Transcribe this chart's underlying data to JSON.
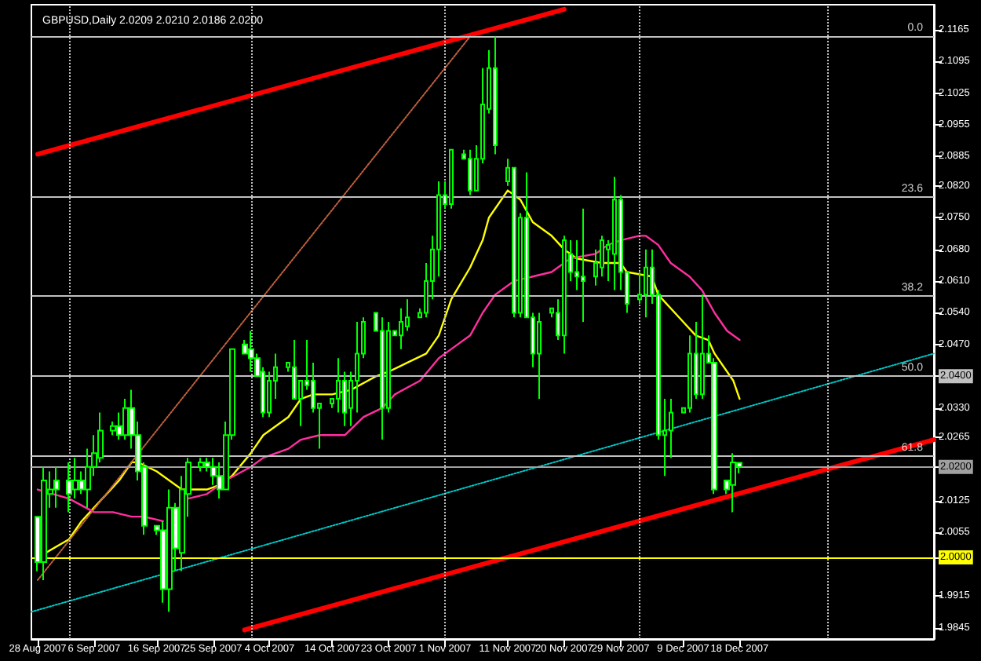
{
  "chart_data": {
    "type": "candlestick",
    "title": "GBPUSD,Daily 2.0209 2.0210 2.0186 2.0200",
    "color": "#00ff00",
    "marker": "none",
    "x": [
      "2007-08-28",
      "2007-08-29",
      "2007-08-30",
      "2007-08-31",
      "2007-09-02",
      "2007-09-03",
      "2007-09-04",
      "2007-09-05",
      "2007-09-06",
      "2007-09-07",
      "2007-09-09",
      "2007-09-10",
      "2007-09-11",
      "2007-09-12",
      "2007-09-13",
      "2007-09-14",
      "2007-09-16",
      "2007-09-17",
      "2007-09-18",
      "2007-09-19",
      "2007-09-20",
      "2007-09-21",
      "2007-09-23",
      "2007-09-24",
      "2007-09-25",
      "2007-09-26",
      "2007-09-27",
      "2007-09-28",
      "2007-09-30",
      "2007-10-01",
      "2007-10-02",
      "2007-10-03",
      "2007-10-04",
      "2007-10-05",
      "2007-10-07",
      "2007-10-08",
      "2007-10-09",
      "2007-10-10",
      "2007-10-11",
      "2007-10-12",
      "2007-10-14",
      "2007-10-15",
      "2007-10-16",
      "2007-10-17",
      "2007-10-18",
      "2007-10-19",
      "2007-10-21",
      "2007-10-22",
      "2007-10-23",
      "2007-10-24",
      "2007-10-25",
      "2007-10-26",
      "2007-10-28",
      "2007-10-29",
      "2007-10-30",
      "2007-10-31",
      "2007-11-01",
      "2007-11-02",
      "2007-11-04",
      "2007-11-05",
      "2007-11-06",
      "2007-11-07",
      "2007-11-08",
      "2007-11-09",
      "2007-11-11",
      "2007-11-12",
      "2007-11-13",
      "2007-11-14",
      "2007-11-15",
      "2007-11-16",
      "2007-11-18",
      "2007-11-19",
      "2007-11-20",
      "2007-11-21",
      "2007-11-22",
      "2007-11-23",
      "2007-11-25",
      "2007-11-26",
      "2007-11-27",
      "2007-11-28",
      "2007-11-29",
      "2007-11-30",
      "2007-12-02",
      "2007-12-03",
      "2007-12-04",
      "2007-12-05",
      "2007-12-06",
      "2007-12-07",
      "2007-12-09",
      "2007-12-10",
      "2007-12-11",
      "2007-12-12",
      "2007-12-13",
      "2007-12-14",
      "2007-12-16",
      "2007-12-17",
      "2007-12-18"
    ],
    "ohlc": [
      [
        2.009,
        2.009,
        1.997,
        1.999
      ],
      [
        1.999,
        2.02,
        1.995,
        2.017
      ],
      [
        2.014,
        2.019,
        2.011,
        2.015
      ],
      [
        2.017,
        2.02,
        2.011,
        2.015
      ],
      [
        2.017,
        2.021,
        2.01,
        2.014
      ],
      [
        2.015,
        2.022,
        2.013,
        2.017
      ],
      [
        2.017,
        2.019,
        2.014,
        2.015
      ],
      [
        2.015,
        2.024,
        2.011,
        2.02
      ],
      [
        2.02,
        2.027,
        2.018,
        2.023
      ],
      [
        2.022,
        2.032,
        2.021,
        2.028
      ],
      [
        2.028,
        2.03,
        2.027,
        2.029
      ],
      [
        2.029,
        2.032,
        2.026,
        2.027
      ],
      [
        2.027,
        2.035,
        2.026,
        2.033
      ],
      [
        2.033,
        2.037,
        2.024,
        2.027
      ],
      [
        2.027,
        2.03,
        2.017,
        2.019
      ],
      [
        2.02,
        2.021,
        2.005,
        2.007
      ],
      [
        2.007,
        2.007,
        2.005,
        2.006
      ],
      [
        2.006,
        2.008,
        1.99,
        1.993
      ],
      [
        1.993,
        2.015,
        1.988,
        2.011
      ],
      [
        2.011,
        2.012,
        1.997,
        2.002
      ],
      [
        2.001,
        2.018,
        1.997,
        2.015
      ],
      [
        2.014,
        2.022,
        2.009,
        2.021
      ],
      [
        2.02,
        2.022,
        2.019,
        2.021
      ],
      [
        2.021,
        2.022,
        2.019,
        2.02
      ],
      [
        2.02,
        2.022,
        2.016,
        2.018
      ],
      [
        2.018,
        2.021,
        2.013,
        2.015
      ],
      [
        2.015,
        2.03,
        2.015,
        2.027
      ],
      [
        2.027,
        2.046,
        2.026,
        2.046
      ],
      [
        2.047,
        2.048,
        2.045,
        2.045
      ],
      [
        2.046,
        2.05,
        2.041,
        2.044
      ],
      [
        2.044,
        2.045,
        2.04,
        2.04
      ],
      [
        2.041,
        2.042,
        2.031,
        2.032
      ],
      [
        2.032,
        2.041,
        2.031,
        2.039
      ],
      [
        2.039,
        2.045,
        2.035,
        2.042
      ],
      [
        2.042,
        2.043,
        2.041,
        2.043
      ],
      [
        2.042,
        2.048,
        2.035,
        2.035
      ],
      [
        2.035,
        2.039,
        2.029,
        2.039
      ],
      [
        2.039,
        2.048,
        2.037,
        2.038
      ],
      [
        2.039,
        2.043,
        2.032,
        2.033
      ],
      [
        2.033,
        2.034,
        2.024,
        2.034
      ],
      [
        2.034,
        2.035,
        2.033,
        2.035
      ],
      [
        2.035,
        2.044,
        2.032,
        2.039
      ],
      [
        2.039,
        2.041,
        2.029,
        2.032
      ],
      [
        2.033,
        2.041,
        2.029,
        2.039
      ],
      [
        2.039,
        2.052,
        2.032,
        2.045
      ],
      [
        2.045,
        2.053,
        2.044,
        2.052
      ],
      [
        2.054,
        2.054,
        2.05,
        2.05
      ],
      [
        2.05,
        2.053,
        2.026,
        2.033
      ],
      [
        2.033,
        2.052,
        2.032,
        2.05
      ],
      [
        2.05,
        2.05,
        2.049,
        2.049
      ],
      [
        2.049,
        2.055,
        2.046,
        2.052
      ],
      [
        2.051,
        2.057,
        2.05,
        2.053
      ],
      [
        2.053,
        2.055,
        2.053,
        2.054
      ],
      [
        2.054,
        2.065,
        2.053,
        2.061
      ],
      [
        2.061,
        2.071,
        2.057,
        2.068
      ],
      [
        2.068,
        2.083,
        2.062,
        2.08
      ],
      [
        2.08,
        2.083,
        2.077,
        2.078
      ],
      [
        2.078,
        2.09,
        2.077,
        2.09
      ],
      [
        2.089,
        2.09,
        2.088,
        2.088
      ],
      [
        2.088,
        2.09,
        2.08,
        2.081
      ],
      [
        2.081,
        2.091,
        2.081,
        2.088
      ],
      [
        2.088,
        2.108,
        2.087,
        2.1
      ],
      [
        2.099,
        2.112,
        2.098,
        2.108
      ],
      [
        2.108,
        2.115,
        2.089,
        2.091
      ],
      [
        2.083,
        2.088,
        2.082,
        2.086
      ],
      [
        2.086,
        2.086,
        2.053,
        2.054
      ],
      [
        2.054,
        2.076,
        2.053,
        2.075
      ],
      [
        2.075,
        2.085,
        2.053,
        2.053
      ],
      [
        2.053,
        2.054,
        2.042,
        2.045
      ],
      [
        2.045,
        2.054,
        2.035,
        2.052
      ],
      [
        2.054,
        2.055,
        2.053,
        2.055
      ],
      [
        2.054,
        2.057,
        2.048,
        2.049
      ],
      [
        2.049,
        2.071,
        2.045,
        2.07
      ],
      [
        2.067,
        2.07,
        2.061,
        2.063
      ],
      [
        2.063,
        2.07,
        2.059,
        2.062
      ],
      [
        2.062,
        2.077,
        2.052,
        2.061
      ],
      [
        2.062,
        2.068,
        2.06,
        2.065
      ],
      [
        2.064,
        2.071,
        2.062,
        2.07
      ],
      [
        2.068,
        2.07,
        2.061,
        2.069
      ],
      [
        2.067,
        2.084,
        2.059,
        2.079
      ],
      [
        2.079,
        2.08,
        2.059,
        2.063
      ],
      [
        2.063,
        2.063,
        2.054,
        2.056
      ],
      [
        2.057,
        2.063,
        2.056,
        2.058
      ],
      [
        2.058,
        2.068,
        2.053,
        2.064
      ],
      [
        2.064,
        2.068,
        2.056,
        2.058
      ],
      [
        2.058,
        2.059,
        2.026,
        2.027
      ],
      [
        2.027,
        2.035,
        2.018,
        2.028
      ],
      [
        2.028,
        2.035,
        2.022,
        2.032
      ],
      [
        2.032,
        2.033,
        2.032,
        2.033
      ],
      [
        2.033,
        2.049,
        2.032,
        2.045
      ],
      [
        2.045,
        2.052,
        2.035,
        2.036
      ],
      [
        2.036,
        2.058,
        2.035,
        2.045
      ],
      [
        2.045,
        2.049,
        2.043,
        2.043
      ],
      [
        2.043,
        2.044,
        2.014,
        2.015
      ],
      [
        2.017,
        2.017,
        2.014,
        2.015
      ],
      [
        2.016,
        2.023,
        2.01,
        2.021
      ],
      [
        2.0209,
        2.021,
        2.0186,
        2.02
      ]
    ],
    "series": [
      {
        "type": "line",
        "color": "#ffff00",
        "x": [
          "2007-08-28",
          "2007-09-02",
          "2007-09-04",
          "2007-09-06",
          "2007-09-10",
          "2007-09-12",
          "2007-09-13",
          "2007-09-16",
          "2007-09-18",
          "2007-09-20",
          "2007-09-24",
          "2007-09-26",
          "2007-09-28",
          "2007-10-01",
          "2007-10-03",
          "2007-10-07",
          "2007-10-09",
          "2007-10-11",
          "2007-10-14",
          "2007-10-17",
          "2007-10-21",
          "2007-10-23",
          "2007-10-26",
          "2007-10-29",
          "2007-10-31",
          "2007-11-02",
          "2007-11-05",
          "2007-11-07",
          "2007-11-08",
          "2007-11-11",
          "2007-11-12",
          "2007-11-13",
          "2007-11-15",
          "2007-11-18",
          "2007-11-20",
          "2007-11-22",
          "2007-11-26",
          "2007-11-29",
          "2007-11-30",
          "2007-12-04",
          "2007-12-05",
          "2007-12-09",
          "2007-12-11",
          "2007-12-13",
          "2007-12-14",
          "2007-12-17",
          "2007-12-18"
        ],
        "values": [
          2.0,
          2.004,
          2.008,
          2.011,
          2.017,
          2.021,
          2.021,
          2.019,
          2.017,
          2.015,
          2.015,
          2.016,
          2.018,
          2.023,
          2.027,
          2.031,
          2.035,
          2.036,
          2.036,
          2.037,
          2.04,
          2.041,
          2.043,
          2.045,
          2.049,
          2.057,
          2.064,
          2.07,
          2.075,
          2.081,
          2.08,
          2.079,
          2.074,
          2.071,
          2.068,
          2.066,
          2.065,
          2.065,
          2.063,
          2.062,
          2.058,
          2.052,
          2.049,
          2.048,
          2.045,
          2.039,
          2.035
        ]
      },
      {
        "type": "line",
        "color": "#ff2fa0",
        "x": [
          "2007-08-28",
          "2007-09-02",
          "2007-09-06",
          "2007-09-09",
          "2007-09-12",
          "2007-09-14",
          "2007-09-17",
          "2007-09-19",
          "2007-09-21",
          "2007-09-24",
          "2007-09-27",
          "2007-10-01",
          "2007-10-03",
          "2007-10-07",
          "2007-10-09",
          "2007-10-12",
          "2007-10-16",
          "2007-10-19",
          "2007-10-22",
          "2007-10-24",
          "2007-10-28",
          "2007-10-31",
          "2007-11-02",
          "2007-11-05",
          "2007-11-07",
          "2007-11-09",
          "2007-11-12",
          "2007-11-15",
          "2007-11-18",
          "2007-11-21",
          "2007-11-25",
          "2007-11-27",
          "2007-11-29",
          "2007-12-02",
          "2007-12-03",
          "2007-12-05",
          "2007-12-07",
          "2007-12-10",
          "2007-12-12",
          "2007-12-14",
          "2007-12-16",
          "2007-12-17",
          "2007-12-18"
        ],
        "values": [
          2.015,
          2.013,
          2.01,
          2.01,
          2.009,
          2.009,
          2.008,
          null,
          2.013,
          2.014,
          2.017,
          2.02,
          2.022,
          2.024,
          2.026,
          2.027,
          2.027,
          2.031,
          2.033,
          2.036,
          2.039,
          2.044,
          2.046,
          2.049,
          2.054,
          2.058,
          2.061,
          2.062,
          2.063,
          2.066,
          2.067,
          2.069,
          2.07,
          2.071,
          2.071,
          2.069,
          2.065,
          2.062,
          2.059,
          2.054,
          2.05,
          2.049,
          2.048
        ]
      },
      {
        "type": "line",
        "color": "#ff0000",
        "x": [
          "2007-08-28",
          "2007-11-20"
        ],
        "values": [
          2.089,
          2.121
        ]
      },
      {
        "type": "line",
        "color": "#ff0000",
        "x": [
          "2007-09-30",
          "2008-01-18"
        ],
        "values": [
          1.984,
          2.026
        ]
      },
      {
        "type": "line",
        "color": "#00c8c8",
        "line_style": "dotted",
        "x": [
          "2007-08-27",
          "2008-01-18"
        ],
        "values": [
          1.988,
          2.045
        ]
      },
      {
        "type": "line",
        "color": "#c0603c",
        "line_style": "dotted",
        "x": [
          "2007-08-28",
          "2007-11-05"
        ],
        "values": [
          1.995,
          2.115
        ]
      }
    ],
    "xlim": [
      "2007-08-27",
      "2008-01-18"
    ],
    "xticks": [
      {
        "value": "2007-08-28",
        "label": "28 Aug 2007"
      },
      {
        "value": "2007-09-06",
        "label": "6 Sep 2007"
      },
      {
        "value": "2007-09-16",
        "label": "16 Sep 2007"
      },
      {
        "value": "2007-09-25",
        "label": "25 Sep 2007"
      },
      {
        "value": "2007-10-04",
        "label": "4 Oct 2007"
      },
      {
        "value": "2007-10-14",
        "label": "14 Oct 2007"
      },
      {
        "value": "2007-10-23",
        "label": "23 Oct 2007"
      },
      {
        "value": "2007-11-01",
        "label": "1 Nov 2007"
      },
      {
        "value": "2007-11-11",
        "label": "11 Nov 2007"
      },
      {
        "value": "2007-11-20",
        "label": "20 Nov 2007"
      },
      {
        "value": "2007-11-29",
        "label": "29 Nov 2007"
      },
      {
        "value": "2007-12-09",
        "label": "9 Dec 2007"
      },
      {
        "value": "2007-12-18",
        "label": "18 Dec 2007"
      }
    ],
    "ylim": [
      1.982,
      2.122
    ],
    "yticks": [
      2.1165,
      2.1095,
      2.1025,
      2.0955,
      2.0885,
      {
        "value": 2.082,
        "label": "2.0820"
      },
      {
        "value": 2.075,
        "label": "2.0750"
      },
      {
        "value": 2.068,
        "label": "2.0680"
      },
      {
        "value": 2.061,
        "label": "2.0610"
      },
      {
        "value": 2.054,
        "label": "2.0540"
      },
      {
        "value": 2.047,
        "label": "2.0470"
      },
      {
        "value": 2.04,
        "label": "2.0400"
      },
      {
        "value": 2.033,
        "label": "2.0330"
      },
      2.0265,
      {
        "value": 2.02,
        "label": "2.0200"
      },
      2.0125,
      2.0055,
      {
        "value": 2.0,
        "label": "2.0000"
      },
      1.9915,
      1.9845
    ],
    "annotations": [
      {
        "text": "0.0",
        "x": "2008-01-18",
        "y": 2.115
      },
      {
        "text": "23.6",
        "x": "2008-01-18",
        "y": 2.0796
      },
      {
        "text": "38.2",
        "x": "2008-01-18",
        "y": 2.0577
      },
      {
        "text": "50.0",
        "x": "2008-01-18",
        "y": 2.04
      },
      {
        "text": "61.8",
        "x": "2008-01-18",
        "y": 2.0223
      }
    ],
    "ref_lines": [
      {
        "axis": "y",
        "value": 2.115,
        "color": "#c0c0c0"
      },
      {
        "axis": "y",
        "value": 2.0796,
        "color": "#c0c0c0"
      },
      {
        "axis": "y",
        "value": 2.0577,
        "color": "#c0c0c0"
      },
      {
        "axis": "y",
        "value": 2.04,
        "color": "#c0c0c0"
      },
      {
        "axis": "y",
        "value": 2.0223,
        "color": "#c0c0c0"
      },
      {
        "axis": "y",
        "value": 2.02,
        "color": "#a0a0a0"
      },
      {
        "axis": "y",
        "value": 2.0,
        "color": "#ffff00"
      },
      {
        "axis": "x",
        "value": "2007-09-02",
        "color": "#c0c0c0",
        "line_style": "dotted"
      },
      {
        "axis": "x",
        "value": "2007-10-01",
        "color": "#c0c0c0",
        "line_style": "dotted"
      },
      {
        "axis": "x",
        "value": "2007-11-01",
        "color": "#c0c0c0",
        "line_style": "dotted"
      },
      {
        "axis": "x",
        "value": "2007-12-02",
        "color": "#c0c0c0",
        "line_style": "dotted"
      },
      {
        "axis": "x",
        "value": "2008-01-01",
        "color": "#c0c0c0",
        "line_style": "dotted"
      }
    ]
  }
}
